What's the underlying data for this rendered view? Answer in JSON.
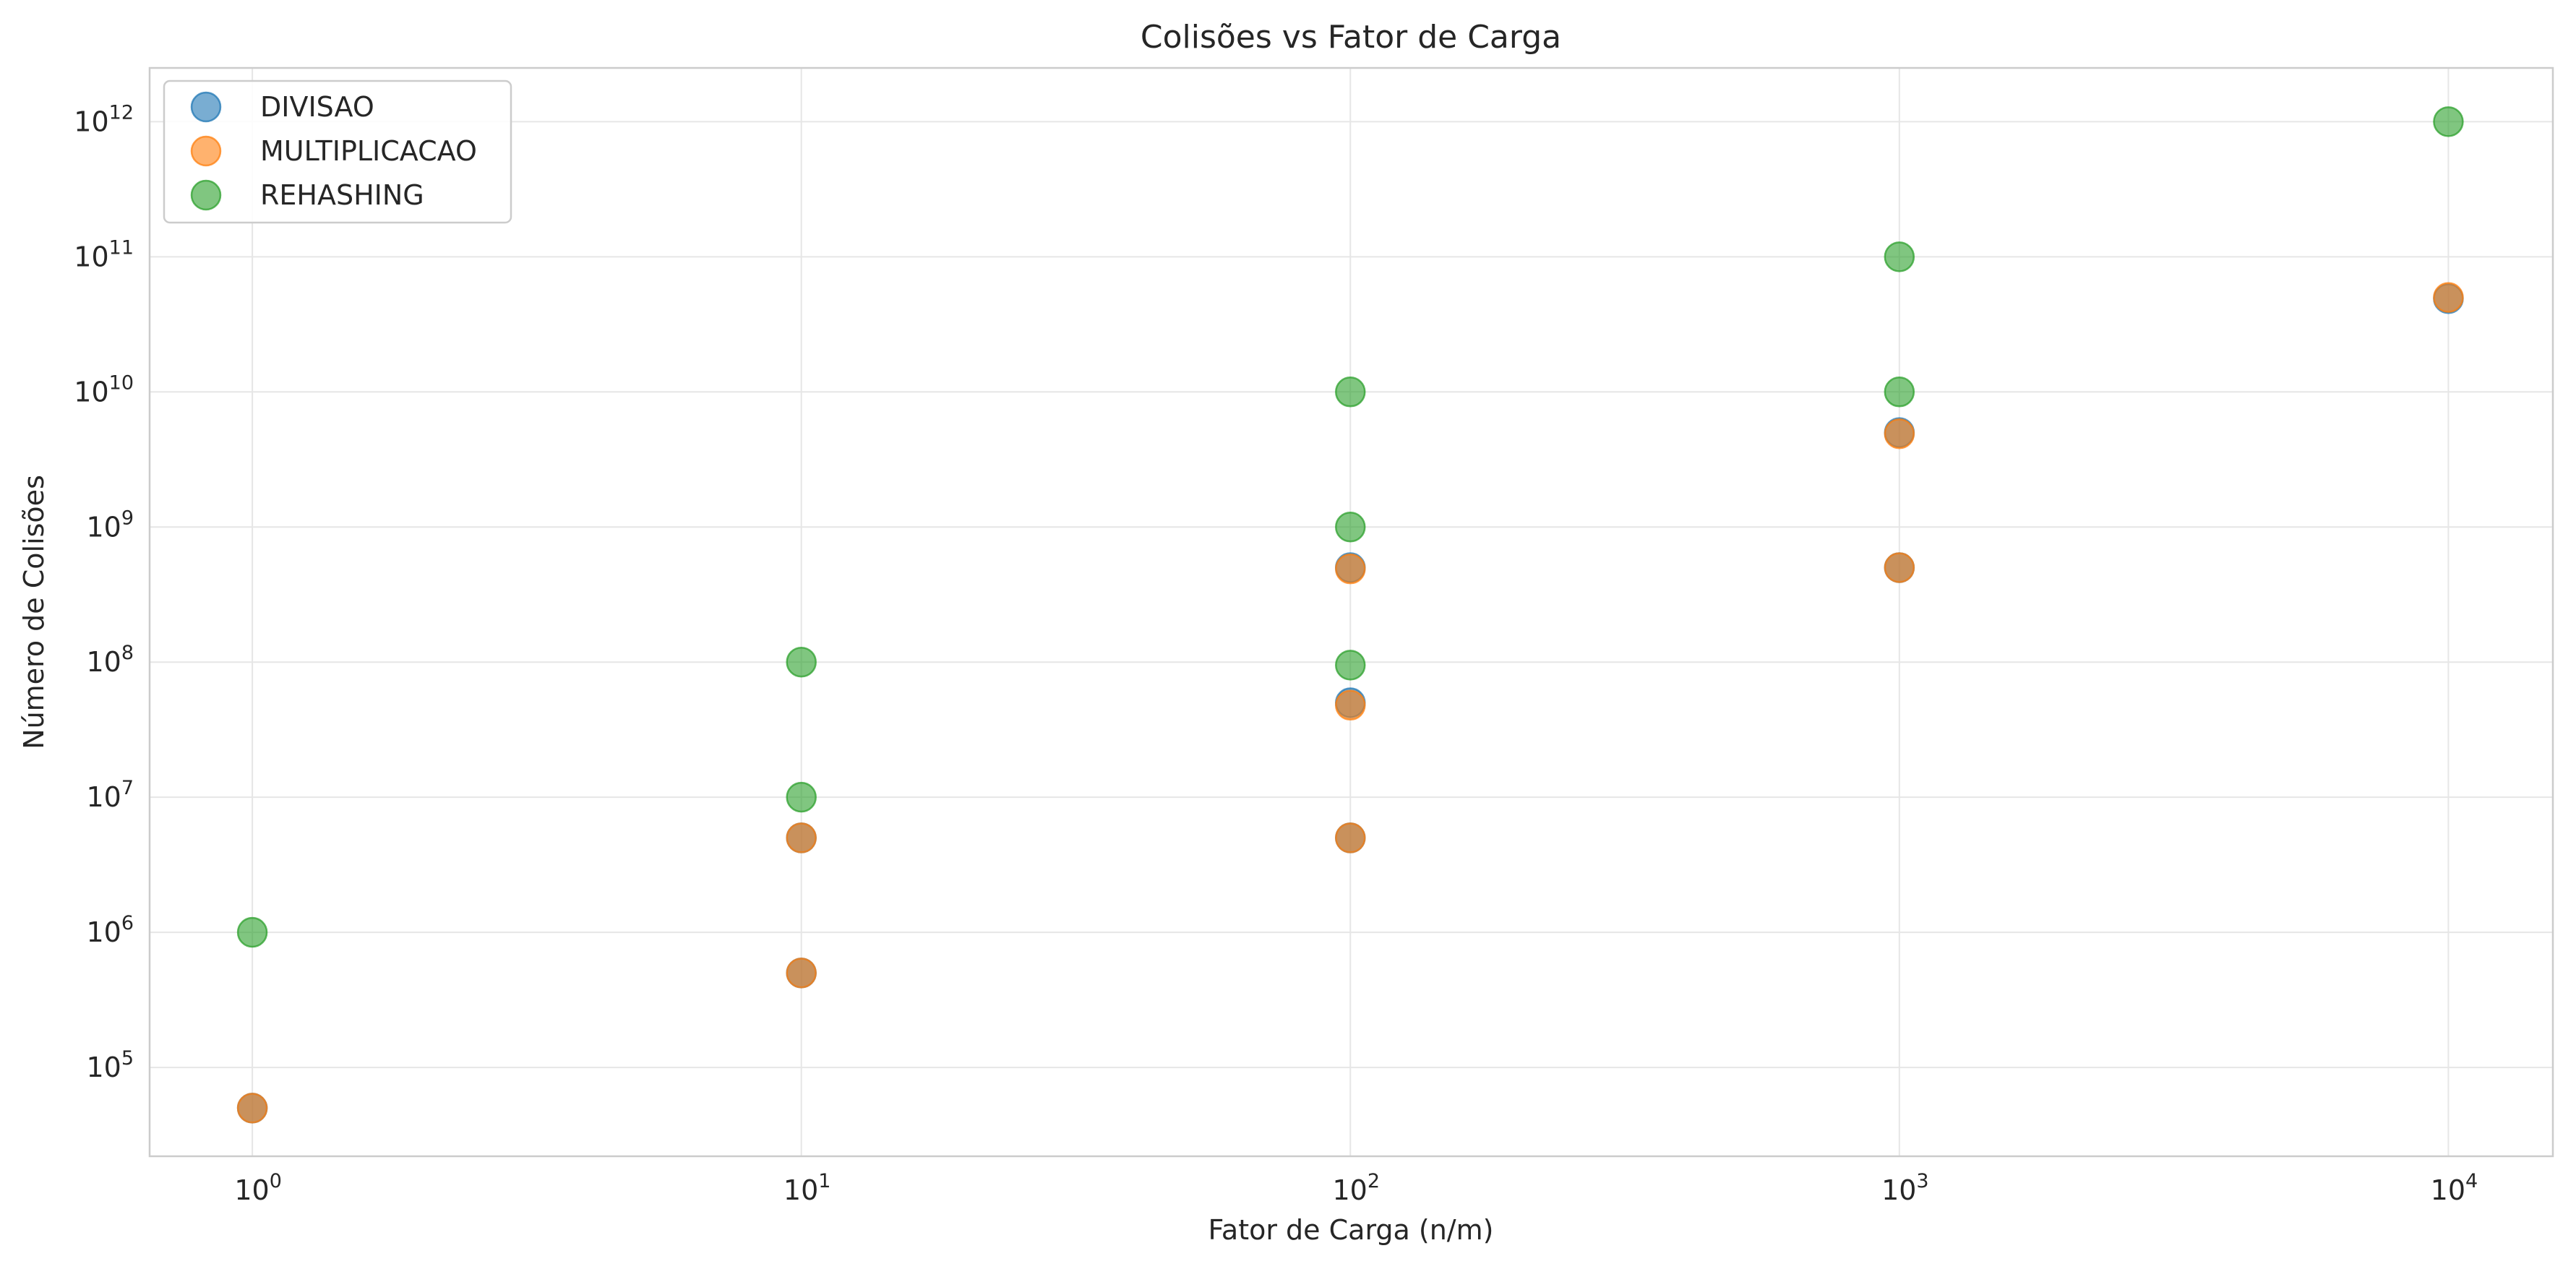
{
  "chart_data": {
    "type": "scatter",
    "title": "Colisões vs Fator de Carga",
    "xlabel": "Fator de Carga (n/m)",
    "ylabel": "Número de Colisões",
    "xscale": "log",
    "yscale": "log",
    "xlim": [
      0.65,
      15500
    ],
    "ylim": [
      22000,
      2500000000000
    ],
    "x_ticks": [
      {
        "base": "10",
        "exp": "0",
        "value": 1
      },
      {
        "base": "10",
        "exp": "1",
        "value": 10
      },
      {
        "base": "10",
        "exp": "2",
        "value": 100
      },
      {
        "base": "10",
        "exp": "3",
        "value": 1000
      },
      {
        "base": "10",
        "exp": "4",
        "value": 10000
      }
    ],
    "y_ticks": [
      {
        "base": "10",
        "exp": "5",
        "value": 100000
      },
      {
        "base": "10",
        "exp": "6",
        "value": 1000000
      },
      {
        "base": "10",
        "exp": "7",
        "value": 10000000
      },
      {
        "base": "10",
        "exp": "8",
        "value": 100000000
      },
      {
        "base": "10",
        "exp": "9",
        "value": 1000000000
      },
      {
        "base": "10",
        "exp": "10",
        "value": 10000000000
      },
      {
        "base": "10",
        "exp": "11",
        "value": 100000000000
      },
      {
        "base": "10",
        "exp": "12",
        "value": 1000000000000
      }
    ],
    "grid": true,
    "legend_position": "top-left",
    "series": [
      {
        "name": "DIVISAO",
        "color": "#1f77b4",
        "points": [
          [
            1,
            50000
          ],
          [
            10,
            500000
          ],
          [
            10,
            5000000
          ],
          [
            100,
            5000000
          ],
          [
            100,
            50000000
          ],
          [
            100,
            500000000
          ],
          [
            1000,
            500000000
          ],
          [
            1000,
            5000000000
          ],
          [
            10000,
            49000000000
          ]
        ]
      },
      {
        "name": "MULTIPLICACAO",
        "color": "#ff7f0e",
        "points": [
          [
            1,
            50000
          ],
          [
            10,
            500000
          ],
          [
            10,
            5000000
          ],
          [
            100,
            5000000
          ],
          [
            100,
            48000000
          ],
          [
            100,
            490000000
          ],
          [
            1000,
            500000000
          ],
          [
            1000,
            4900000000
          ],
          [
            10000,
            50000000000
          ]
        ]
      },
      {
        "name": "REHASHING",
        "color": "#2ca02c",
        "points": [
          [
            1,
            1000000
          ],
          [
            10,
            10000000
          ],
          [
            10,
            100000000
          ],
          [
            100,
            95000000
          ],
          [
            100,
            1000000000
          ],
          [
            100,
            10000000000
          ],
          [
            1000,
            10000000000
          ],
          [
            1000,
            100000000000
          ],
          [
            10000,
            1000000000000
          ]
        ]
      }
    ]
  }
}
